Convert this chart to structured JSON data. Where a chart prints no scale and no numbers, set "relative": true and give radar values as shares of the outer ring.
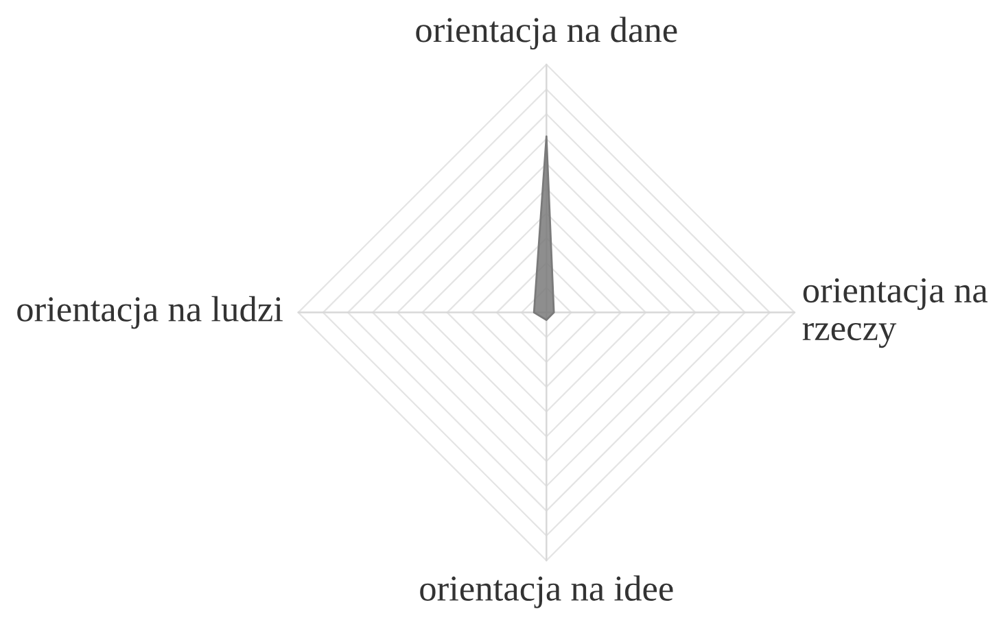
{
  "chart_data": {
    "type": "radar",
    "relative": true,
    "grid": true,
    "categories": [
      "orientacja na dane",
      "orientacja na rzeczy",
      "orientacja na idee",
      "orientacja na ludzi"
    ],
    "series": [
      {
        "color": "#7a7a7a",
        "values": [
          0.71,
          0.03,
          0.03,
          0.05
        ]
      }
    ]
  }
}
